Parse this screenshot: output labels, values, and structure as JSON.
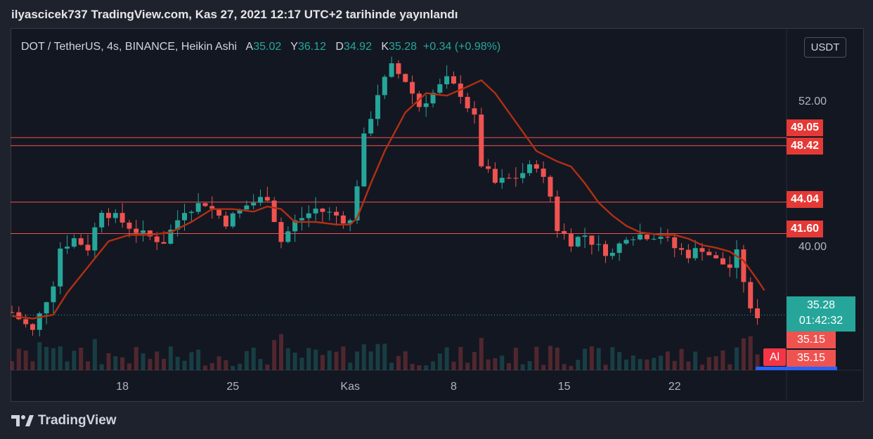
{
  "banner": "ilyascicek737 TradingView.com, Kas 27, 2021 12:17 UTC+2 tarihinde yayınlandı",
  "legend": {
    "symbol": "DOT / TetherUS, 4s, BINANCE, Heikin Ashi",
    "o_label": "A",
    "o_value": "35.02",
    "h_label": "Y",
    "h_value": "36.12",
    "l_label": "D",
    "l_value": "34.92",
    "c_label": "K",
    "c_value": "35.28",
    "change": "+0.34 (+0.98%)"
  },
  "currency_button": "USDT",
  "footer": {
    "brand": "TradingView"
  },
  "alert_tag": "Al",
  "colors": {
    "up": "#26a69a",
    "down": "#ef5350",
    "ma": "#b22f12",
    "level_line": "#ef5350",
    "tag_red": "#e53935",
    "price_tag": "#26a69a",
    "bid_tag": "#ef5350",
    "background": "#131722",
    "text": "#b2b5be"
  },
  "chart_data": {
    "type": "candlestick",
    "style": "Heikin Ashi",
    "symbol": "DOT / TetherUS",
    "exchange": "BINANCE",
    "interval": "4s",
    "x_ticks": [
      "18",
      "25",
      "Kas",
      "8",
      "15",
      "22"
    ],
    "y_ticks": [
      "52.00",
      "40.00"
    ],
    "ylim": [
      31,
      57
    ],
    "horizontal_levels": [
      {
        "label": "49.05",
        "value": 49.05
      },
      {
        "label": "48.42",
        "value": 48.42
      },
      {
        "label": "44.04",
        "value": 44.04
      },
      {
        "label": "41.60",
        "value": 41.6
      }
    ],
    "last_price": {
      "label": "35.28",
      "value": 35.28,
      "countdown": "01:42:32"
    },
    "bid_tags": [
      "35.15",
      "35.15"
    ],
    "price_path": [
      [
        0,
        35.5
      ],
      [
        3,
        34.0
      ],
      [
        6,
        37.8
      ],
      [
        7,
        40.5
      ],
      [
        9,
        41.2
      ],
      [
        11,
        40.5
      ],
      [
        13,
        43.5
      ],
      [
        16,
        42.5
      ],
      [
        19,
        41.5
      ],
      [
        22,
        41.0
      ],
      [
        25,
        43.5
      ],
      [
        28,
        44.0
      ],
      [
        31,
        42.5
      ],
      [
        34,
        43.8
      ],
      [
        37,
        44.5
      ],
      [
        39,
        41.0
      ],
      [
        41,
        42.5
      ],
      [
        44,
        43.5
      ],
      [
        47,
        43.0
      ],
      [
        49,
        42.5
      ],
      [
        50,
        45.5
      ],
      [
        51,
        49.0
      ],
      [
        53,
        52.5
      ],
      [
        55,
        54.5
      ],
      [
        57,
        53.5
      ],
      [
        59,
        51.5
      ],
      [
        61,
        52.5
      ],
      [
        63,
        53.5
      ],
      [
        65,
        52.5
      ],
      [
        67,
        50.5
      ],
      [
        68,
        47.0
      ],
      [
        70,
        45.5
      ],
      [
        73,
        46.0
      ],
      [
        76,
        47.0
      ],
      [
        78,
        44.5
      ],
      [
        79,
        42.0
      ],
      [
        81,
        41.0
      ],
      [
        83,
        41.5
      ],
      [
        85,
        40.5
      ],
      [
        87,
        40.0
      ],
      [
        89,
        41.5
      ],
      [
        91,
        41.5
      ],
      [
        94,
        41.5
      ],
      [
        96,
        40.5
      ],
      [
        98,
        40.0
      ],
      [
        100,
        40.5
      ],
      [
        102,
        39.5
      ],
      [
        104,
        39.0
      ],
      [
        105,
        40.0
      ],
      [
        106,
        38.0
      ],
      [
        107,
        35.5
      ],
      [
        108,
        35.3
      ]
    ],
    "ma_path": [
      [
        0,
        35.2
      ],
      [
        3,
        35.0
      ],
      [
        6,
        35.3
      ],
      [
        8,
        37.0
      ],
      [
        11,
        39.0
      ],
      [
        14,
        41.0
      ],
      [
        17,
        41.5
      ],
      [
        20,
        41.5
      ],
      [
        23,
        41.7
      ],
      [
        26,
        42.5
      ],
      [
        29,
        43.5
      ],
      [
        32,
        43.5
      ],
      [
        35,
        43.3
      ],
      [
        37,
        43.7
      ],
      [
        39,
        43.5
      ],
      [
        41,
        42.5
      ],
      [
        44,
        42.5
      ],
      [
        47,
        42.3
      ],
      [
        49,
        42.3
      ],
      [
        50,
        42.8
      ],
      [
        52,
        45.5
      ],
      [
        54,
        48.0
      ],
      [
        57,
        51.0
      ],
      [
        60,
        52.5
      ],
      [
        63,
        52.3
      ],
      [
        66,
        53.0
      ],
      [
        68,
        53.5
      ],
      [
        70,
        52.5
      ],
      [
        72,
        51.0
      ],
      [
        74,
        49.5
      ],
      [
        76,
        48.0
      ],
      [
        79,
        47.2
      ],
      [
        81,
        46.8
      ],
      [
        83,
        45.5
      ],
      [
        85,
        44.0
      ],
      [
        87,
        43.0
      ],
      [
        89,
        42.2
      ],
      [
        91,
        41.7
      ],
      [
        94,
        41.5
      ],
      [
        96,
        41.5
      ],
      [
        98,
        41.2
      ],
      [
        100,
        40.7
      ],
      [
        102,
        40.5
      ],
      [
        104,
        40.2
      ],
      [
        106,
        39.5
      ],
      [
        108,
        38.0
      ],
      [
        109,
        37.2
      ]
    ]
  }
}
